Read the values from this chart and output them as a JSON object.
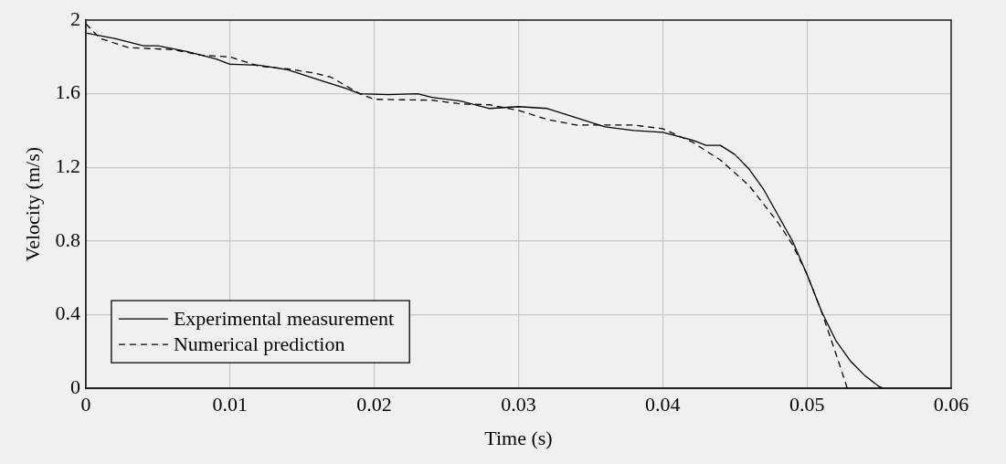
{
  "chart_data": {
    "type": "line",
    "xlabel": "Time (s)",
    "ylabel": "Velocity (m/s)",
    "xlim": [
      0,
      0.06
    ],
    "xticks": [
      0,
      0.01,
      0.02,
      0.03,
      0.04,
      0.05,
      0.06
    ],
    "ylim": [
      0,
      2
    ],
    "yticks": [
      0,
      0.4,
      0.8,
      1.2,
      1.6,
      2
    ],
    "grid": true,
    "legend": "bottom left",
    "marker": "none",
    "series": [
      {
        "name": "Experimental measurement",
        "color": "#000000",
        "line_style": "solid",
        "x": [
          0,
          0.002,
          0.004,
          0.005,
          0.007,
          0.009,
          0.01,
          0.012,
          0.014,
          0.016,
          0.018,
          0.019,
          0.021,
          0.023,
          0.024,
          0.026,
          0.028,
          0.03,
          0.032,
          0.034,
          0.036,
          0.038,
          0.04,
          0.042,
          0.043,
          0.044,
          0.045,
          0.046,
          0.047,
          0.048,
          0.049,
          0.05,
          0.051,
          0.052,
          0.053,
          0.054,
          0.055,
          0.0553
        ],
        "values": [
          1.93,
          1.9,
          1.86,
          1.86,
          1.83,
          1.79,
          1.76,
          1.755,
          1.73,
          1.68,
          1.63,
          1.6,
          1.595,
          1.6,
          1.58,
          1.56,
          1.52,
          1.53,
          1.52,
          1.47,
          1.42,
          1.4,
          1.39,
          1.35,
          1.32,
          1.32,
          1.27,
          1.19,
          1.08,
          0.94,
          0.8,
          0.62,
          0.42,
          0.26,
          0.15,
          0.07,
          0.01,
          0
        ]
      },
      {
        "name": "Numerical prediction",
        "color": "#000000",
        "line_style": "dashed",
        "x": [
          0,
          0.001,
          0.003,
          0.006,
          0.008,
          0.01,
          0.012,
          0.014,
          0.016,
          0.017,
          0.019,
          0.02,
          0.024,
          0.026,
          0.028,
          0.03,
          0.032,
          0.034,
          0.036,
          0.038,
          0.04,
          0.042,
          0.044,
          0.046,
          0.048,
          0.049,
          0.05,
          0.051,
          0.052,
          0.0528
        ],
        "values": [
          1.98,
          1.9,
          1.85,
          1.84,
          1.81,
          1.8,
          1.75,
          1.735,
          1.71,
          1.69,
          1.6,
          1.57,
          1.565,
          1.545,
          1.54,
          1.51,
          1.46,
          1.43,
          1.43,
          1.43,
          1.41,
          1.34,
          1.24,
          1.1,
          0.9,
          0.78,
          0.62,
          0.42,
          0.19,
          0
        ]
      }
    ]
  }
}
